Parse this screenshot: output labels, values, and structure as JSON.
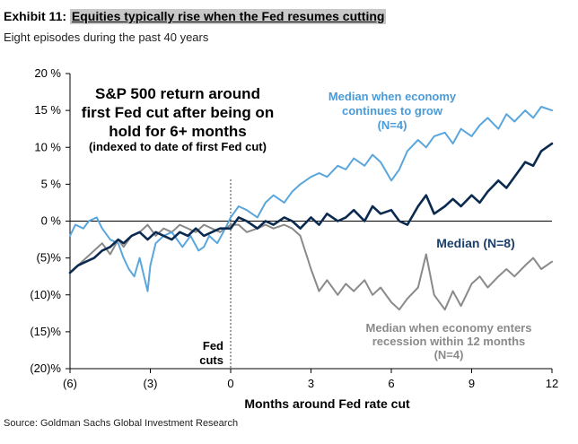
{
  "header": {
    "exhibit": "Exhibit 11:",
    "title": "Equities typically rise when the Fed resumes cutting",
    "subtitle": "Eight episodes during the past 40 years",
    "source": "Source: Goldman Sachs Global Investment Research"
  },
  "colors": {
    "grow": "#5aa6dc",
    "median": "#0b2a4f",
    "recession": "#8a8a8a",
    "grow_text": "#4a9bd8",
    "median_text": "#1b3f6b",
    "recession_text": "#8a8a8a"
  },
  "chart_data": {
    "type": "line",
    "title": "S&P 500 return around first Fed cut after being on hold for 6+ months",
    "title_lines": [
      "S&P 500 return around",
      "first Fed cut after being on",
      "hold for 6+ months"
    ],
    "subtitle": "(indexed to date of first Fed cut)",
    "xlabel": "Months around Fed rate cut",
    "ylabel": "",
    "xlim": [
      -6,
      12
    ],
    "ylim": [
      -20,
      20
    ],
    "x_ticks": [
      -6,
      -3,
      0,
      3,
      6,
      9,
      12
    ],
    "x_tick_labels": [
      "(6)",
      "(3)",
      "0",
      "3",
      "6",
      "9",
      "12"
    ],
    "y_ticks": [
      20,
      15,
      10,
      5,
      0,
      -5,
      -10,
      -15,
      -20
    ],
    "y_tick_labels": [
      "20 %",
      "15 %",
      "10 %",
      "5 %",
      "0 %",
      "(5)%",
      "(10)%",
      "(15)%",
      "(20)%"
    ],
    "vline": {
      "x": 0,
      "label_lines": [
        "Fed",
        "cuts"
      ]
    },
    "series": [
      {
        "name": "Median when economy continues to grow (N=4)",
        "label_lines": [
          "Median when economy",
          "continues to grow",
          "(N=4)"
        ],
        "x": [
          -6,
          -5.8,
          -5.5,
          -5.3,
          -5,
          -4.8,
          -4.5,
          -4.2,
          -4,
          -3.8,
          -3.6,
          -3.4,
          -3.2,
          -3.1,
          -3,
          -2.8,
          -2.5,
          -2.2,
          -2,
          -1.8,
          -1.5,
          -1.2,
          -1,
          -0.8,
          -0.5,
          -0.2,
          0,
          0.3,
          0.6,
          1,
          1.3,
          1.6,
          2,
          2.3,
          2.6,
          3,
          3.3,
          3.6,
          4,
          4.3,
          4.6,
          5,
          5.3,
          5.6,
          6,
          6.3,
          6.6,
          7,
          7.3,
          7.6,
          8,
          8.3,
          8.6,
          9,
          9.3,
          9.6,
          10,
          10.3,
          10.6,
          11,
          11.3,
          11.6,
          12
        ],
        "values": [
          -2,
          -0.5,
          -1,
          0,
          0.5,
          -1,
          -2.5,
          -3,
          -5,
          -6.5,
          -7.5,
          -5,
          -8,
          -9.5,
          -6,
          -3,
          -2,
          -1.5,
          -2.5,
          -3.5,
          -2,
          -4,
          -3.5,
          -2,
          -3,
          -1,
          0.5,
          2,
          1.5,
          0.5,
          2.5,
          3.5,
          2.5,
          4,
          5,
          6,
          6.5,
          6,
          7.5,
          7,
          8.5,
          7.5,
          9,
          8,
          5.5,
          7,
          9.5,
          11,
          10,
          11.5,
          12,
          10.5,
          12.5,
          11.5,
          13,
          14,
          12.5,
          14.5,
          13.5,
          15,
          14,
          15.5,
          15
        ]
      },
      {
        "name": "Median (N=8)",
        "label_lines": [
          "Median (N=8)"
        ],
        "x": [
          -6,
          -5.7,
          -5.4,
          -5.1,
          -4.8,
          -4.5,
          -4.2,
          -4,
          -3.7,
          -3.4,
          -3.1,
          -2.8,
          -2.5,
          -2.2,
          -1.9,
          -1.6,
          -1.3,
          -1,
          -0.7,
          -0.4,
          0,
          0.3,
          0.6,
          1,
          1.3,
          1.6,
          2,
          2.3,
          2.6,
          3,
          3.3,
          3.6,
          4,
          4.3,
          4.6,
          5,
          5.3,
          5.6,
          6,
          6.3,
          6.6,
          7,
          7.3,
          7.6,
          8,
          8.3,
          8.6,
          9,
          9.3,
          9.6,
          10,
          10.3,
          10.6,
          11,
          11.3,
          11.6,
          12
        ],
        "values": [
          -7,
          -6,
          -5.5,
          -5,
          -4,
          -3.5,
          -2.5,
          -3,
          -2,
          -1.5,
          -2.5,
          -1.5,
          -2,
          -2.5,
          -1.5,
          -2,
          -1,
          -2,
          -1.5,
          -1,
          -1,
          0.5,
          0,
          -1,
          0,
          -0.5,
          0.5,
          0,
          -1,
          0.5,
          -0.5,
          1,
          0,
          0.5,
          1.5,
          0,
          2,
          1,
          1.5,
          0,
          -0.5,
          2,
          3.5,
          1,
          2,
          3,
          2,
          3.5,
          2.5,
          4,
          5.5,
          4.5,
          6,
          8,
          7.5,
          9.5,
          10.5
        ]
      },
      {
        "name": "Median when economy enters recession within 12 months (N=4)",
        "label_lines": [
          "Median when economy  enters",
          "recession within 12 months",
          "(N=4)"
        ],
        "x": [
          -6,
          -5.7,
          -5.4,
          -5.1,
          -4.8,
          -4.5,
          -4.2,
          -4,
          -3.7,
          -3.4,
          -3.1,
          -2.8,
          -2.5,
          -2.2,
          -1.9,
          -1.6,
          -1.3,
          -1,
          -0.7,
          -0.4,
          0,
          0.3,
          0.6,
          1,
          1.3,
          1.6,
          2,
          2.3,
          2.6,
          3,
          3.3,
          3.6,
          4,
          4.3,
          4.6,
          5,
          5.3,
          5.6,
          6,
          6.3,
          6.6,
          7,
          7.3,
          7.6,
          8,
          8.3,
          8.6,
          9,
          9.3,
          9.6,
          10,
          10.3,
          10.6,
          11,
          11.3,
          11.6,
          12
        ],
        "values": [
          -7,
          -6,
          -5,
          -4,
          -3,
          -4.5,
          -2.5,
          -3.5,
          -2,
          -1.5,
          -0.5,
          -2,
          -1,
          -1.5,
          -0.5,
          -1,
          -1.5,
          -0.5,
          -1,
          -1.5,
          -0.5,
          -0.5,
          -1.5,
          -1,
          -0.5,
          -1,
          -0.5,
          -1,
          -2,
          -6.5,
          -9.5,
          -8,
          -10,
          -8.5,
          -9.5,
          -8,
          -10,
          -9,
          -11,
          -12,
          -10.5,
          -9,
          -4.5,
          -10,
          -12,
          -9.5,
          -11.5,
          -8.5,
          -7.5,
          -9,
          -7.5,
          -6.5,
          -7.5,
          -6,
          -5,
          -6.5,
          -5.5
        ]
      }
    ]
  }
}
